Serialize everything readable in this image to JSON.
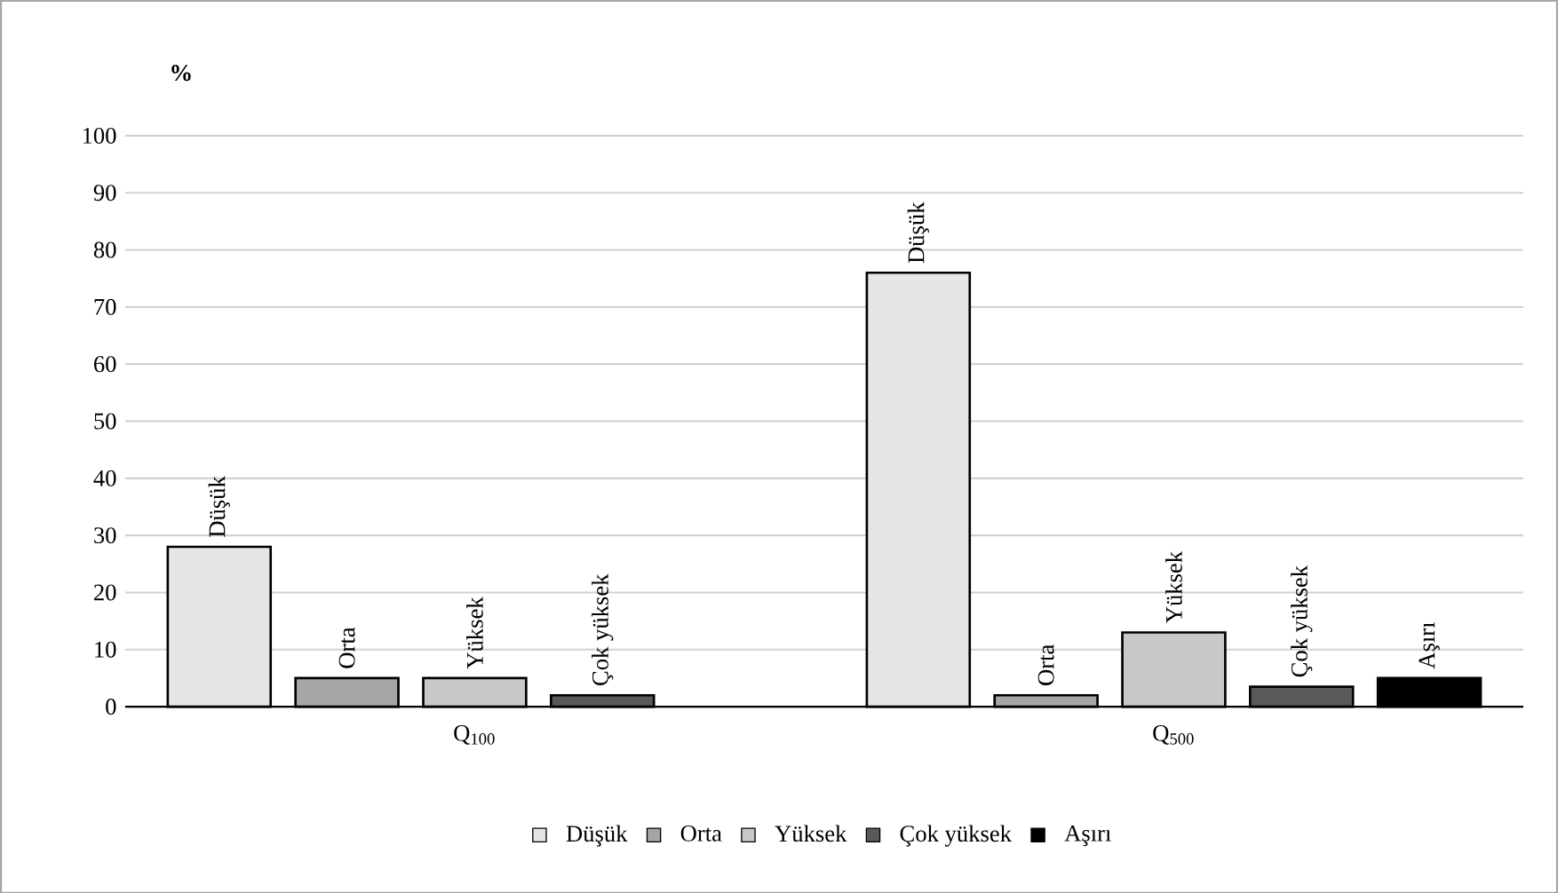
{
  "chart_data": {
    "type": "bar",
    "ylabel": "%",
    "categories": [
      "Q$_{100}$",
      "Q$_{500}$"
    ],
    "series": [
      {
        "name": "Düşük",
        "color": "#e6e6e6",
        "values": [
          28,
          76
        ]
      },
      {
        "name": "Orta",
        "color": "#a6a6a6",
        "values": [
          5,
          2
        ]
      },
      {
        "name": "Yüksek",
        "color": "#c8c8c8",
        "values": [
          5,
          13
        ]
      },
      {
        "name": "Çok yüksek",
        "color": "#595959",
        "values": [
          2,
          3.5
        ]
      },
      {
        "name": "Aşırı",
        "color": "#000000",
        "values": [
          null,
          5
        ]
      }
    ],
    "ylim": [
      0,
      100
    ],
    "yticks": [
      0,
      10,
      20,
      30,
      40,
      50,
      60,
      70,
      80,
      90,
      100
    ],
    "grid": "y",
    "legend": "bottom"
  }
}
